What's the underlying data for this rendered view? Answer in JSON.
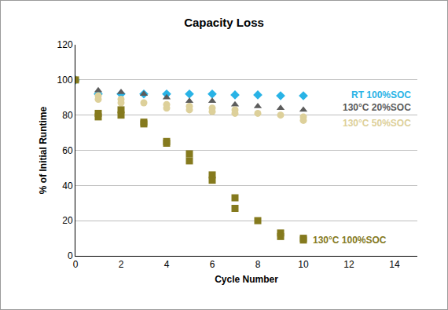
{
  "chart_data": {
    "type": "scatter",
    "title": "Capacity Loss",
    "x_label": "Cycle Number",
    "y_label": "% of Initial Runtime",
    "xlim": [
      0,
      15
    ],
    "xticks": [
      0,
      2,
      4,
      6,
      8,
      10,
      12,
      14
    ],
    "ylim": [
      0,
      120
    ],
    "yticks": [
      0,
      20,
      40,
      60,
      80,
      100,
      120
    ],
    "grid": true,
    "series": [
      {
        "name": "RT 100%SOC",
        "color": "#29b3e6",
        "marker": "diamond",
        "x": [
          0,
          1,
          2,
          3,
          4,
          5,
          6,
          7,
          8,
          9,
          10
        ],
        "values": [
          100,
          92,
          92,
          92,
          92,
          92,
          92,
          91.5,
          91.5,
          91,
          91
        ]
      },
      {
        "name": "130°C 20%SOC",
        "color": "#5c5c5c",
        "marker": "triangle",
        "x": [
          0,
          1,
          2,
          3,
          4,
          5,
          6,
          7,
          8,
          9,
          10
        ],
        "values": [
          100,
          94,
          93,
          92,
          90,
          88,
          88,
          86,
          85,
          84,
          83
        ]
      },
      {
        "name": "130°C 50%SOC",
        "color": "#ddd09a",
        "marker": "circle",
        "x": [
          0,
          1,
          1,
          2,
          2,
          3,
          4,
          4,
          5,
          5,
          6,
          6,
          7,
          7,
          8,
          9,
          10,
          10
        ],
        "values": [
          100,
          91,
          89,
          89,
          87,
          87,
          86,
          84,
          85,
          83,
          84,
          82,
          83,
          81,
          81,
          80,
          79,
          77
        ]
      },
      {
        "name": "130°C 100%SOC",
        "color": "#857a1e",
        "marker": "square",
        "x": [
          0,
          1,
          1,
          2,
          2,
          3,
          3,
          4,
          4,
          5,
          5,
          6,
          6,
          7,
          7,
          8,
          9,
          9,
          10,
          10
        ],
        "values": [
          100,
          81,
          79,
          83,
          80,
          76,
          75,
          65,
          64,
          58,
          54,
          46,
          43,
          33,
          27,
          20,
          13,
          11,
          10,
          9
        ]
      }
    ]
  }
}
